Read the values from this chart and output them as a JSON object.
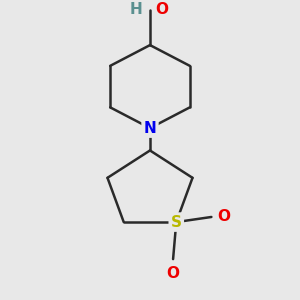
{
  "background_color": "#e8e8e8",
  "bond_color": "#2a2a2a",
  "bond_width": 1.8,
  "atom_colors": {
    "N": "#0000ee",
    "O": "#ee0000",
    "S": "#b8b800",
    "H": "#5a9090",
    "C": "#2a2a2a"
  },
  "font_size": 11,
  "figsize": [
    3.0,
    3.0
  ],
  "dpi": 100,
  "xlim": [
    -1.8,
    1.8
  ],
  "ylim": [
    -2.6,
    2.0
  ]
}
